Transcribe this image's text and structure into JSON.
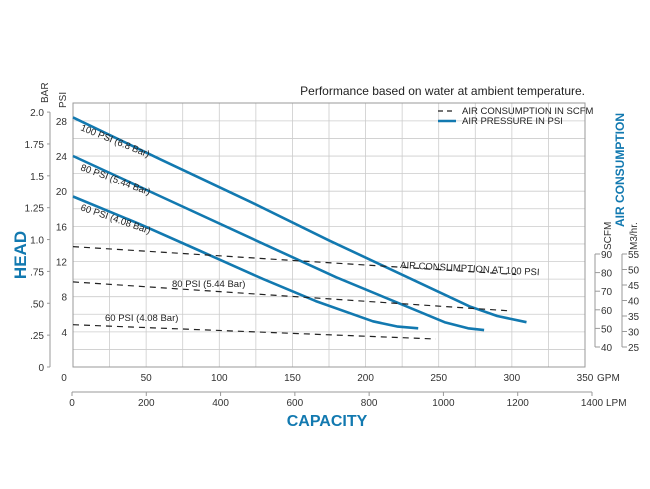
{
  "chart_data": {
    "type": "line",
    "title": "Performance based on water at ambient temperature.",
    "xlabel": "CAPACITY",
    "ylabel": "HEAD",
    "y2label": "AIR CONSUMPTION",
    "x_units": {
      "primary": "GPM",
      "secondary": "LPM"
    },
    "y_units": {
      "primary": "PSI",
      "secondary": "BAR"
    },
    "y2_units": {
      "primary": "SCFM",
      "secondary": "M3/hr."
    },
    "xlim": [
      0,
      350
    ],
    "ylim_psi": [
      0,
      30
    ],
    "y2lim_scfm": [
      40,
      90
    ],
    "grid": true,
    "legend_placement": "top-right",
    "legend": [
      {
        "label": "AIR CONSUMPTION IN SCFM",
        "style": "dashed"
      },
      {
        "label": "AIR PRESSURE IN PSI",
        "style": "solid"
      }
    ],
    "x_ticks_gpm": [
      "0",
      "50",
      "100",
      "150",
      "200",
      "250",
      "300",
      "350"
    ],
    "x_ticks_lpm": [
      "0",
      "200",
      "400",
      "600",
      "800",
      "1000",
      "1200",
      "1400"
    ],
    "y_ticks_psi": [
      "4",
      "8",
      "12",
      "16",
      "20",
      "24",
      "28"
    ],
    "y_ticks_bar": [
      "0",
      ".25",
      ".50",
      ".75",
      "1.0",
      "1.25",
      "1.5",
      "1.75",
      "2.0"
    ],
    "y2_ticks_scfm": [
      "40",
      "50",
      "60",
      "70",
      "80",
      "90"
    ],
    "y2_ticks_m3hr": [
      "25",
      "30",
      "35",
      "40",
      "45",
      "50",
      "55"
    ],
    "head_series": [
      {
        "name": "100 PSI (6.8 Bar)",
        "points": [
          [
            0,
            28.4
          ],
          [
            60,
            23.6
          ],
          [
            120,
            18.9
          ],
          [
            175,
            14.4
          ],
          [
            230,
            10.1
          ],
          [
            271,
            6.9
          ],
          [
            290,
            5.8
          ],
          [
            310,
            5.1
          ]
        ]
      },
      {
        "name": "80 PSI (5.44 Bar)",
        "points": [
          [
            0,
            24.0
          ],
          [
            60,
            19.4
          ],
          [
            125,
            14.4
          ],
          [
            180,
            10.2
          ],
          [
            225,
            7.1
          ],
          [
            254,
            5.1
          ],
          [
            270,
            4.4
          ],
          [
            281,
            4.2
          ]
        ]
      },
      {
        "name": "60 PSI (4.08 Bar)",
        "points": [
          [
            0,
            19.4
          ],
          [
            45,
            16.3
          ],
          [
            87,
            13.2
          ],
          [
            130,
            10.0
          ],
          [
            166,
            7.5
          ],
          [
            205,
            5.2
          ],
          [
            222,
            4.6
          ],
          [
            236,
            4.4
          ]
        ]
      }
    ],
    "air_series": [
      {
        "name": "AIR CONSUMPTION AT 100 PSI",
        "points": [
          [
            0,
            94
          ],
          [
            303,
            79
          ]
        ]
      },
      {
        "name": "80 PSI (5.44 Bar)",
        "points": [
          [
            0,
            75
          ],
          [
            297,
            59.5
          ]
        ]
      },
      {
        "name": "60 PSI (4.08 Bar)",
        "points": [
          [
            0,
            52
          ],
          [
            248,
            44.3
          ]
        ]
      }
    ],
    "colors": {
      "head": "#1279b0",
      "air": "#222222",
      "accent_text": "#1279b0",
      "grid": "#cccccc"
    }
  }
}
